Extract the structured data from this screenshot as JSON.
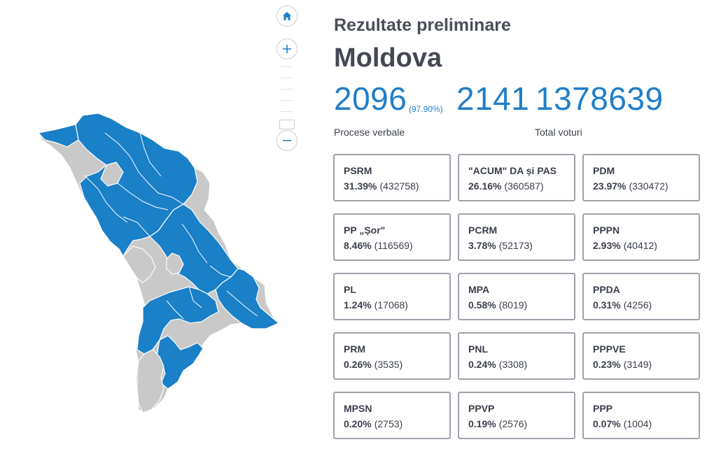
{
  "header": {
    "subtitle": "Rezultate preliminare",
    "region": "Moldova"
  },
  "stats": {
    "processed": "2096",
    "processed_pct": "(97.90%)",
    "total_stations": "2141",
    "total_votes": "1378639",
    "processed_label": "Procese verbale",
    "votes_label": "Total voturi"
  },
  "map": {
    "controls": [
      "home-icon",
      "plus-icon",
      "minus-icon"
    ],
    "colors": {
      "winner": "#1a80c8",
      "other": "#c9c9c9",
      "border": "#ffffff"
    }
  },
  "parties": [
    {
      "name": "PSRM",
      "pct": "31.39%",
      "votes": "(432758)"
    },
    {
      "name": "\"ACUM\" DA și PAS",
      "pct": "26.16%",
      "votes": "(360587)"
    },
    {
      "name": "PDM",
      "pct": "23.97%",
      "votes": "(330472)"
    },
    {
      "name": "PP „Șor\"",
      "pct": "8.46%",
      "votes": "(116569)"
    },
    {
      "name": "PCRM",
      "pct": "3.78%",
      "votes": "(52173)"
    },
    {
      "name": "PPPN",
      "pct": "2.93%",
      "votes": "(40412)"
    },
    {
      "name": "PL",
      "pct": "1.24%",
      "votes": "(17068)"
    },
    {
      "name": "MPA",
      "pct": "0.58%",
      "votes": "(8019)"
    },
    {
      "name": "PPDA",
      "pct": "0.31%",
      "votes": "(4256)"
    },
    {
      "name": "PRM",
      "pct": "0.26%",
      "votes": "(3535)"
    },
    {
      "name": "PNL",
      "pct": "0.24%",
      "votes": "(3308)"
    },
    {
      "name": "PPPVE",
      "pct": "0.23%",
      "votes": "(3149)"
    },
    {
      "name": "MPSN",
      "pct": "0.20%",
      "votes": "(2753)"
    },
    {
      "name": "PPVP",
      "pct": "0.19%",
      "votes": "(2576)"
    },
    {
      "name": "PPP",
      "pct": "0.07%",
      "votes": "(1004)"
    }
  ]
}
